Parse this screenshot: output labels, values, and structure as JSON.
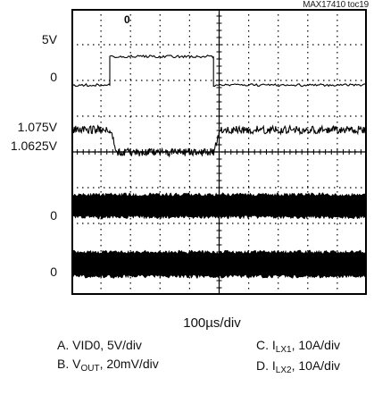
{
  "figure_id": "MAX17410 toc19",
  "chart_data": {
    "type": "line",
    "title": "",
    "xlabel": "100µs/div",
    "ylabel": "",
    "x_divisions": 10,
    "y_divisions": 8,
    "grid": true,
    "y_markers": [
      {
        "label": "5V",
        "div": 1.33
      },
      {
        "label": "0",
        "div": 2.13
      },
      {
        "label": "1.075V",
        "div": 3.38
      },
      {
        "label": "1.0625V",
        "div": 4.01
      },
      {
        "label": "0",
        "div": 5.51
      },
      {
        "label": "0",
        "div": 7.14
      }
    ],
    "series": [
      {
        "name": "A. VID0, 5V/div",
        "id": "A",
        "x": [
          0,
          2.6,
          2.6,
          9.62,
          9.62,
          20
        ],
        "y": [
          0,
          0,
          5,
          5,
          0,
          0
        ]
      },
      {
        "name": "B. VOUT, 20mV/div",
        "id": "B",
        "x": [
          0,
          2.6,
          3.1,
          9.62,
          10.1,
          20
        ],
        "y": [
          1.075,
          1.075,
          1.0625,
          1.0625,
          1.075,
          1.075
        ]
      },
      {
        "name": "C. ILX1, 10A/div",
        "id": "C",
        "x": [
          0,
          20
        ],
        "y": [
          0,
          0
        ]
      },
      {
        "name": "D. ILX2, 10A/div",
        "id": "D",
        "x": [
          0,
          20
        ],
        "y": [
          0,
          0
        ]
      }
    ]
  },
  "legend": {
    "a": {
      "prefix": "A. VID0, 5V/div"
    },
    "b": {
      "prefix": "B. V",
      "sub": "OUT",
      "suffix": ", 20mV/div"
    },
    "c": {
      "prefix": "C. I",
      "sub": "LX1",
      "suffix": ", 10A/div"
    },
    "d": {
      "prefix": "D. I",
      "sub": "LX2",
      "suffix": ", 10A/div"
    }
  },
  "cursor_label": "0"
}
